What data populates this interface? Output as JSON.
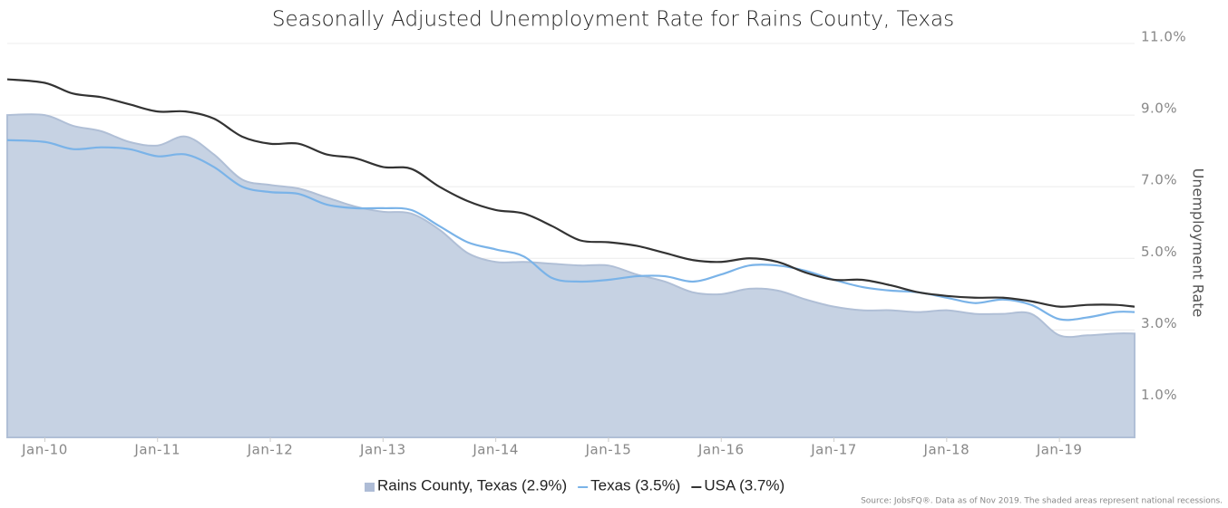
{
  "chart_data": {
    "type": "line",
    "title": "Seasonally Adjusted Unemployment Rate for Rains County, Texas",
    "y_axis_label": "Unemployment Rate",
    "source": "Source: JobsFQ®. Data as of Nov 2019. The shaded areas represent national recessions.",
    "x": [
      "2009-09",
      "2010-01",
      "2010-04",
      "2010-07",
      "2010-10",
      "2011-01",
      "2011-04",
      "2011-07",
      "2011-10",
      "2012-01",
      "2012-04",
      "2012-07",
      "2012-10",
      "2013-01",
      "2013-04",
      "2013-07",
      "2013-10",
      "2014-01",
      "2014-04",
      "2014-07",
      "2014-10",
      "2015-01",
      "2015-04",
      "2015-07",
      "2015-10",
      "2016-01",
      "2016-04",
      "2016-07",
      "2016-10",
      "2017-01",
      "2017-04",
      "2017-07",
      "2017-10",
      "2018-01",
      "2018-04",
      "2018-07",
      "2018-10",
      "2019-01",
      "2019-04",
      "2019-07",
      "2019-09"
    ],
    "xlim": [
      "2009-09",
      "2019-09"
    ],
    "xticks": [
      {
        "value": "2010-01",
        "label": "Jan-10"
      },
      {
        "value": "2011-01",
        "label": "Jan-11"
      },
      {
        "value": "2012-01",
        "label": "Jan-12"
      },
      {
        "value": "2013-01",
        "label": "Jan-13"
      },
      {
        "value": "2014-01",
        "label": "Jan-14"
      },
      {
        "value": "2015-01",
        "label": "Jan-15"
      },
      {
        "value": "2016-01",
        "label": "Jan-16"
      },
      {
        "value": "2017-01",
        "label": "Jan-17"
      },
      {
        "value": "2018-01",
        "label": "Jan-18"
      },
      {
        "value": "2019-01",
        "label": "Jan-19"
      }
    ],
    "ylim": [
      0,
      11
    ],
    "yticks": [
      {
        "value": 1,
        "label": "1.0%"
      },
      {
        "value": 3,
        "label": "3.0%"
      },
      {
        "value": 5,
        "label": "5.0%"
      },
      {
        "value": 7,
        "label": "7.0%"
      },
      {
        "value": 9,
        "label": "9.0%"
      },
      {
        "value": 11,
        "label": "11.0%"
      }
    ],
    "grid": true,
    "legend": "bottom",
    "series": [
      {
        "name": "Rains County, Texas (2.9%)",
        "style": "area",
        "color": "#c6d2e3",
        "values": [
          9.0,
          9.0,
          8.7,
          8.55,
          8.25,
          8.15,
          8.4,
          7.9,
          7.2,
          7.05,
          6.95,
          6.7,
          6.45,
          6.3,
          6.25,
          5.8,
          5.15,
          4.9,
          4.9,
          4.85,
          4.8,
          4.8,
          4.55,
          4.35,
          4.05,
          4.0,
          4.15,
          4.1,
          3.85,
          3.65,
          3.55,
          3.55,
          3.5,
          3.55,
          3.45,
          3.45,
          3.45,
          2.85,
          2.85,
          2.9,
          2.9
        ]
      },
      {
        "name": "Texas (3.5%)",
        "style": "line",
        "color": "#7ab3e8",
        "values": [
          8.3,
          8.25,
          8.05,
          8.1,
          8.05,
          7.85,
          7.9,
          7.55,
          7.0,
          6.85,
          6.8,
          6.5,
          6.4,
          6.4,
          6.35,
          5.9,
          5.45,
          5.25,
          5.05,
          4.45,
          4.35,
          4.4,
          4.5,
          4.5,
          4.35,
          4.55,
          4.8,
          4.8,
          4.65,
          4.4,
          4.2,
          4.1,
          4.05,
          3.9,
          3.75,
          3.85,
          3.7,
          3.3,
          3.35,
          3.5,
          3.5
        ]
      },
      {
        "name": "USA (3.7%)",
        "style": "line",
        "color": "#333333",
        "values": [
          10.0,
          9.9,
          9.6,
          9.5,
          9.3,
          9.1,
          9.1,
          8.9,
          8.4,
          8.2,
          8.2,
          7.9,
          7.8,
          7.55,
          7.5,
          7.0,
          6.6,
          6.35,
          6.25,
          5.9,
          5.5,
          5.45,
          5.35,
          5.15,
          4.95,
          4.9,
          5.0,
          4.9,
          4.6,
          4.4,
          4.4,
          4.25,
          4.05,
          3.95,
          3.9,
          3.9,
          3.8,
          3.65,
          3.7,
          3.7,
          3.65
        ]
      }
    ]
  }
}
